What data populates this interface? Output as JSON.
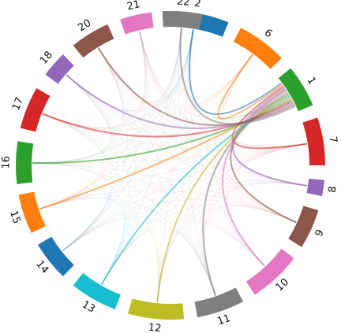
{
  "chart_data": {
    "type": "chord",
    "title": "",
    "segments": [
      {
        "label": "2",
        "color": "#1f77b4",
        "start": -3.0,
        "end": 22.0
      },
      {
        "label": "6",
        "color": "#ff7f0e",
        "start": 27.0,
        "end": 46.0
      },
      {
        "label": "1",
        "color": "#2ca02c",
        "start": 51.0,
        "end": 67.0
      },
      {
        "label": "7",
        "color": "#d62728",
        "start": 72.0,
        "end": 90.0
      },
      {
        "label": "8",
        "color": "#9467bd",
        "start": 95.5,
        "end": 101.5
      },
      {
        "label": "9",
        "color": "#8c564b",
        "start": 107.0,
        "end": 122.0
      },
      {
        "label": "10",
        "color": "#e377c2",
        "start": 127.0,
        "end": 147.0
      },
      {
        "label": "11",
        "color": "#7f7f7f",
        "start": 152.0,
        "end": 170.0
      },
      {
        "label": "12",
        "color": "#bcbd22",
        "start": 175.0,
        "end": 196.0
      },
      {
        "label": "13",
        "color": "#17becf",
        "start": 201.0,
        "end": 219.0
      },
      {
        "label": "14",
        "color": "#1f77b4",
        "start": 224.0,
        "end": 239.0
      },
      {
        "label": "15",
        "color": "#ff7f0e",
        "start": 244.0,
        "end": 259.0
      },
      {
        "label": "16",
        "color": "#2ca02c",
        "start": 263.0,
        "end": 279.0
      },
      {
        "label": "17",
        "color": "#d62728",
        "start": 284.0,
        "end": 300.0
      },
      {
        "label": "18",
        "color": "#9467bd",
        "start": 306.0,
        "end": 316.0
      },
      {
        "label": "20",
        "color": "#8c564b",
        "start": 321.0,
        "end": 336.0
      },
      {
        "label": "21",
        "color": "#e377c2",
        "start": 341.0,
        "end": 353.0
      },
      {
        "label": "22",
        "color": "#7f7f7f",
        "start": 357.0,
        "end": 372.0
      }
    ],
    "links": [
      {
        "source": "1",
        "target": "2",
        "color": "#1f77b4"
      },
      {
        "source": "1",
        "target": "6",
        "color": "#ff7f0e"
      },
      {
        "source": "1",
        "target": "7",
        "color": "#d62728"
      },
      {
        "source": "1",
        "target": "8",
        "color": "#9467bd"
      },
      {
        "source": "1",
        "target": "9",
        "color": "#8c564b"
      },
      {
        "source": "1",
        "target": "10",
        "color": "#e377c2"
      },
      {
        "source": "1",
        "target": "11",
        "color": "#7f7f7f"
      },
      {
        "source": "1",
        "target": "12",
        "color": "#bcbd22"
      },
      {
        "source": "1",
        "target": "13",
        "color": "#17becf"
      },
      {
        "source": "1",
        "target": "15",
        "color": "#ff7f0e"
      },
      {
        "source": "1",
        "target": "16",
        "color": "#2ca02c"
      },
      {
        "source": "1",
        "target": "17",
        "color": "#d62728"
      },
      {
        "source": "1",
        "target": "18",
        "color": "#9467bd"
      },
      {
        "source": "1",
        "target": "20",
        "color": "#8c564b"
      },
      {
        "source": "1",
        "target": "22",
        "color": "#7f7f7f"
      }
    ]
  }
}
